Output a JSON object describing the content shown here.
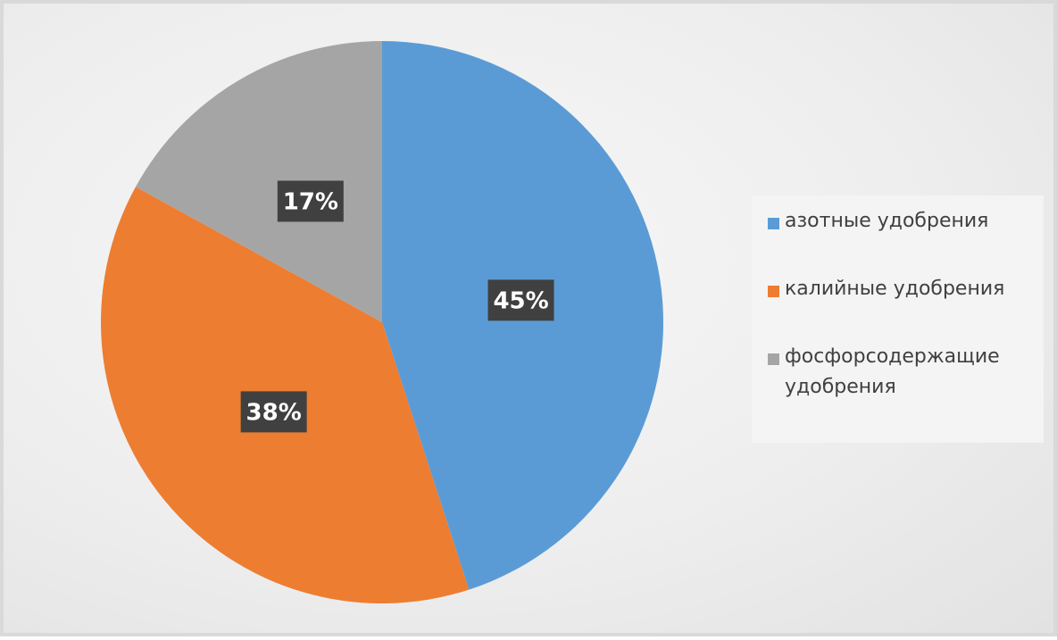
{
  "chart_data": {
    "type": "pie",
    "categories": [
      "азотные удобрения",
      "калийные удобрения",
      "фосфорсодержащие удобрения"
    ],
    "values": [
      45,
      38,
      17
    ],
    "value_labels": [
      "45%",
      "38%",
      "17%"
    ],
    "colors": [
      "#5b9bd5",
      "#ed7d31",
      "#a5a5a5"
    ],
    "legend": "right"
  }
}
